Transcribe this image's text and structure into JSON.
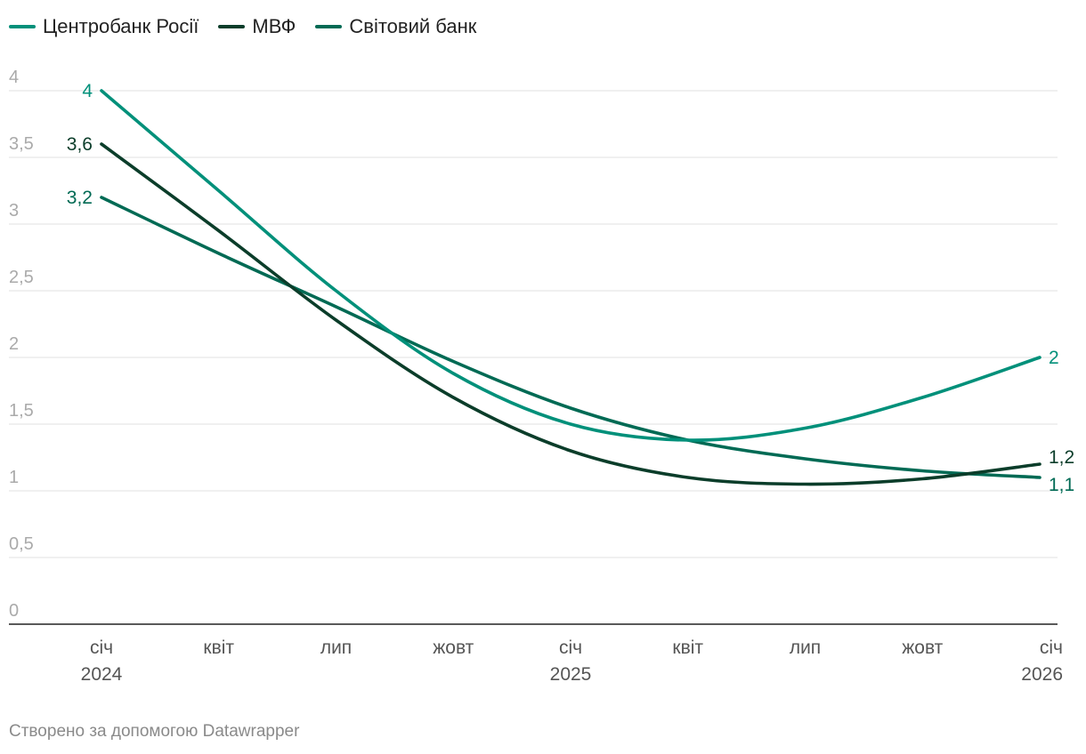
{
  "legend": [
    {
      "label": "Центробанк Росії",
      "color": "#00907a"
    },
    {
      "label": "МВФ",
      "color": "#0b3d2a"
    },
    {
      "label": "Світовий банк",
      "color": "#006a54"
    }
  ],
  "credit": "Створено за допомогою Datawrapper",
  "chart_data": {
    "type": "line",
    "title": "",
    "xlabel": "",
    "ylabel": "",
    "ylim": [
      0,
      4
    ],
    "yticks": [
      {
        "value": 0,
        "label": "0"
      },
      {
        "value": 0.5,
        "label": "0,5"
      },
      {
        "value": 1,
        "label": "1"
      },
      {
        "value": 1.5,
        "label": "1,5"
      },
      {
        "value": 2,
        "label": "2"
      },
      {
        "value": 2.5,
        "label": "2,5"
      },
      {
        "value": 3,
        "label": "3"
      },
      {
        "value": 3.5,
        "label": "3,5"
      },
      {
        "value": 4,
        "label": "4"
      }
    ],
    "xlim": [
      0,
      24
    ],
    "xticks": [
      {
        "value": 0,
        "label": "січ",
        "sublabel": "2024"
      },
      {
        "value": 3,
        "label": "квіт",
        "sublabel": ""
      },
      {
        "value": 6,
        "label": "лип",
        "sublabel": ""
      },
      {
        "value": 9,
        "label": "жовт",
        "sublabel": ""
      },
      {
        "value": 12,
        "label": "січ",
        "sublabel": "2025"
      },
      {
        "value": 15,
        "label": "квіт",
        "sublabel": ""
      },
      {
        "value": 18,
        "label": "лип",
        "sublabel": ""
      },
      {
        "value": 21,
        "label": "жовт",
        "sublabel": ""
      },
      {
        "value": 24,
        "label": "січ",
        "sublabel": "2026"
      }
    ],
    "grid": true,
    "series": [
      {
        "name": "Центробанк Росії",
        "color": "#00907a",
        "x": [
          0,
          3,
          6,
          9,
          12,
          15,
          18,
          21,
          24
        ],
        "y": [
          4.0,
          3.25,
          2.5,
          1.88,
          1.5,
          1.38,
          1.47,
          1.7,
          2.0
        ],
        "start_label": "4",
        "end_label": "2"
      },
      {
        "name": "МВФ",
        "color": "#0b3d2a",
        "x": [
          0,
          3,
          6,
          9,
          12,
          15,
          18,
          21,
          24
        ],
        "y": [
          3.6,
          2.95,
          2.28,
          1.7,
          1.3,
          1.1,
          1.05,
          1.09,
          1.2
        ],
        "start_label": "3,6",
        "end_label": "1,2"
      },
      {
        "name": "Світовий банк",
        "color": "#006a54",
        "x": [
          0,
          3,
          6,
          9,
          12,
          15,
          18,
          21,
          24
        ],
        "y": [
          3.2,
          2.78,
          2.38,
          1.97,
          1.62,
          1.38,
          1.24,
          1.15,
          1.1
        ],
        "start_label": "3,2",
        "end_label": "1,1"
      }
    ]
  }
}
